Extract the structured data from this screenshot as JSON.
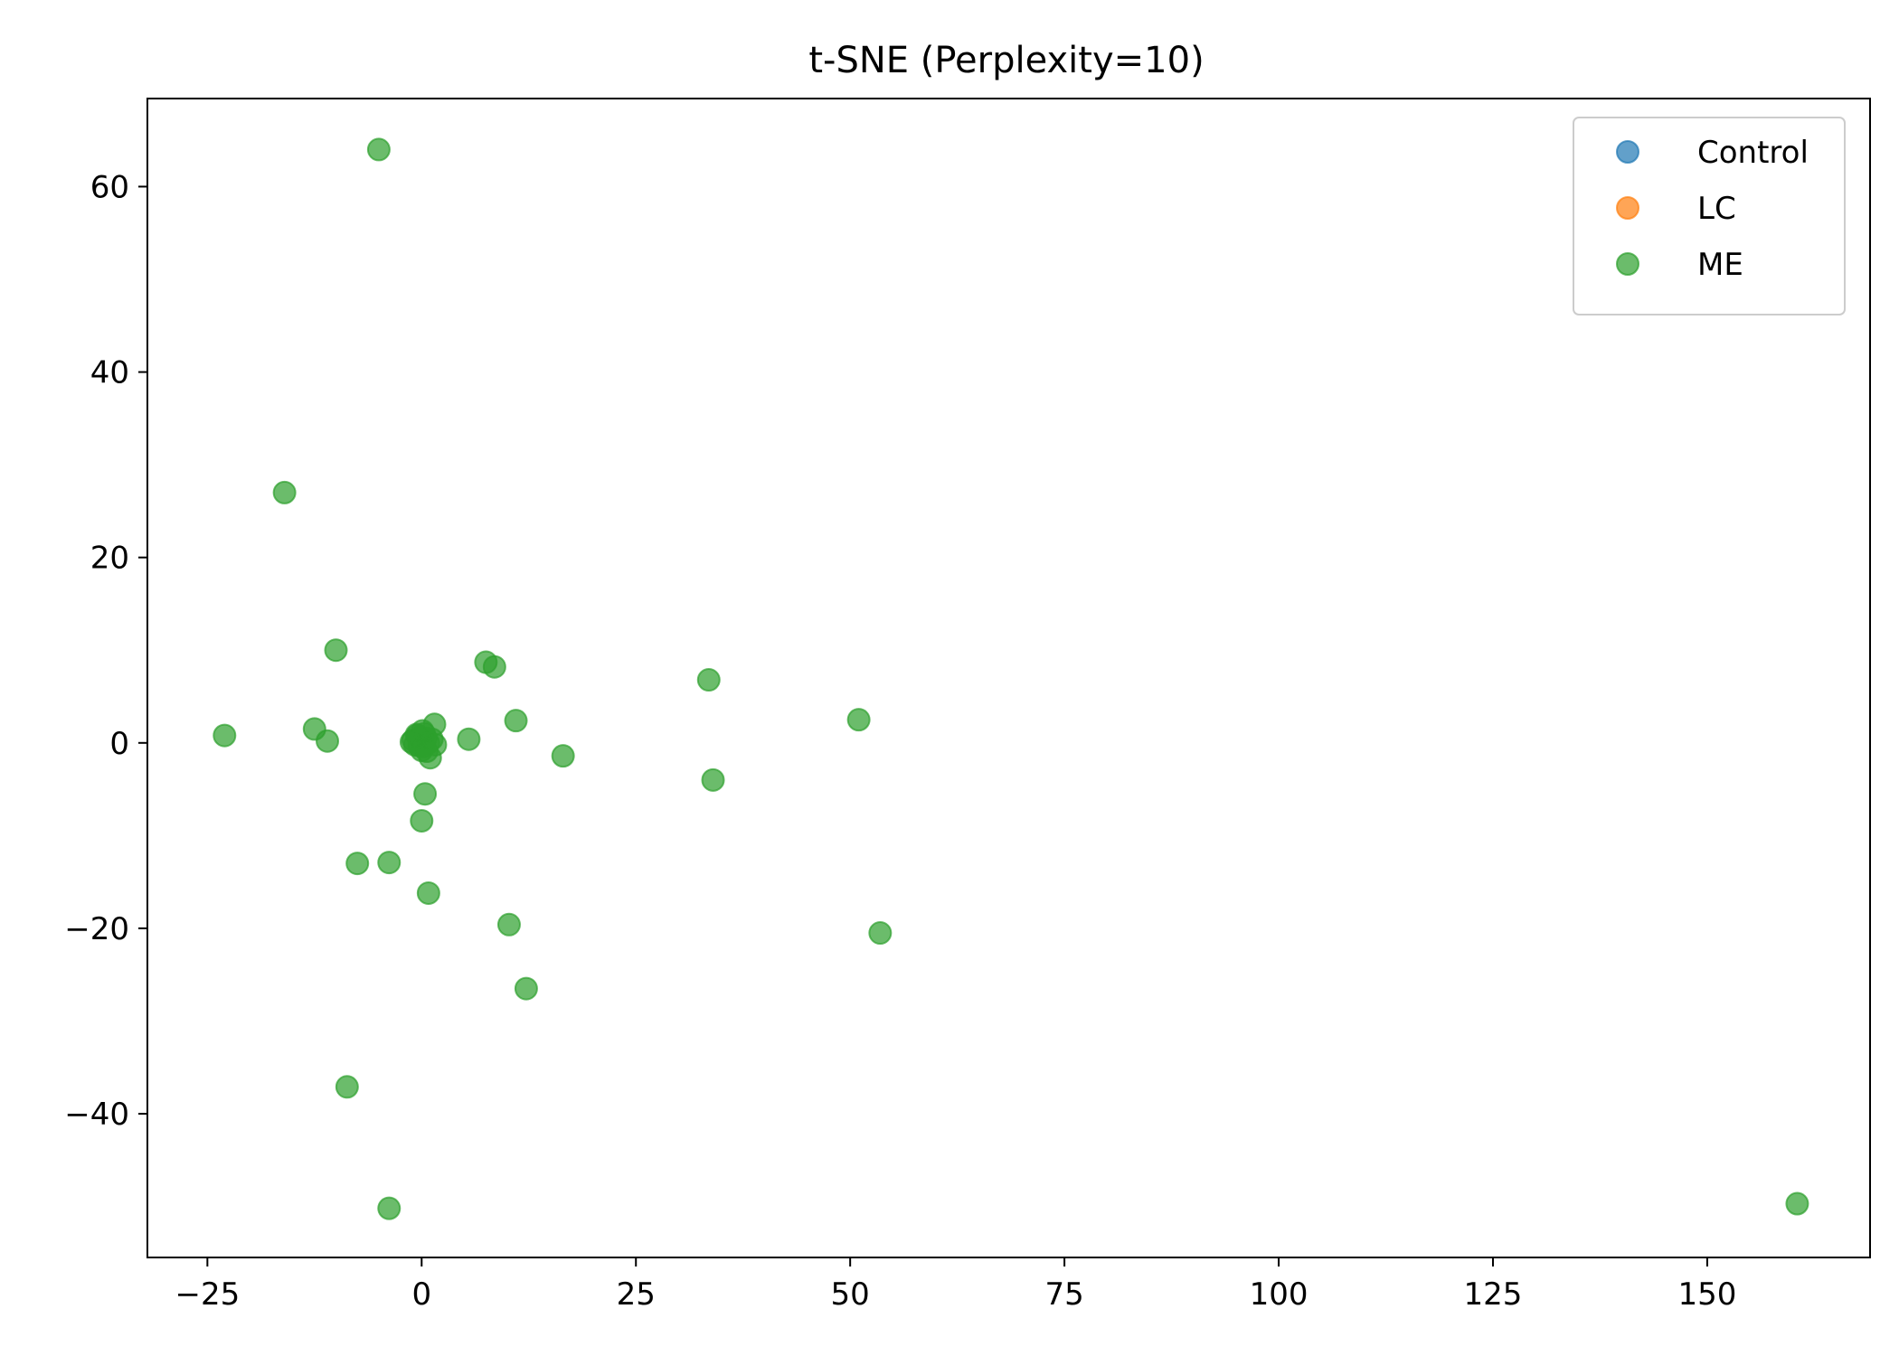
{
  "chart_data": {
    "type": "scatter",
    "title": "t-SNE (Perplexity=10)",
    "xlabel": "",
    "ylabel": "",
    "xlim": [
      -32,
      169
    ],
    "ylim": [
      -55.5,
      69.5
    ],
    "xticks": [
      -25,
      0,
      25,
      50,
      75,
      100,
      125,
      150
    ],
    "yticks": [
      -40,
      -20,
      0,
      20,
      40,
      60
    ],
    "grid": false,
    "legend_position": "top-right",
    "series": [
      {
        "name": "Control",
        "color": "#1f77b4",
        "points": []
      },
      {
        "name": "LC",
        "color": "#ff7f0e",
        "points": []
      },
      {
        "name": "ME",
        "color": "#2ca02c",
        "points": [
          [
            -5,
            64
          ],
          [
            -16,
            27
          ],
          [
            -10,
            10
          ],
          [
            -23,
            0.8
          ],
          [
            -12.5,
            1.5
          ],
          [
            -11,
            0.2
          ],
          [
            7.5,
            8.7
          ],
          [
            8.5,
            8.2
          ],
          [
            1.5,
            2
          ],
          [
            5.5,
            0.4
          ],
          [
            11,
            2.4
          ],
          [
            16.5,
            -1.4
          ],
          [
            33.5,
            6.8
          ],
          [
            34,
            -4
          ],
          [
            51,
            2.5
          ],
          [
            53.5,
            -20.5
          ],
          [
            0.4,
            -5.5
          ],
          [
            0,
            -8.4
          ],
          [
            -7.5,
            -13
          ],
          [
            -3.8,
            -12.9
          ],
          [
            0.8,
            -16.2
          ],
          [
            10.2,
            -19.6
          ],
          [
            12.2,
            -26.5
          ],
          [
            -8.7,
            -37.1
          ],
          [
            -3.8,
            -50.2
          ],
          [
            160.5,
            -49.7
          ],
          [
            -1,
            0.3
          ],
          [
            -0.5,
            0.8
          ],
          [
            0,
            0.2
          ],
          [
            0.5,
            0.5
          ],
          [
            -0.3,
            -0.3
          ],
          [
            0.3,
            1
          ],
          [
            -0.8,
            -0.2
          ],
          [
            0.8,
            0
          ],
          [
            0,
            -0.8
          ],
          [
            1,
            -1.6
          ],
          [
            -0.2,
            0.6
          ],
          [
            1.2,
            0.4
          ],
          [
            0.2,
            -0.4
          ],
          [
            -0.6,
            0.9
          ],
          [
            0.6,
            -0.9
          ],
          [
            -1.2,
            0.1
          ],
          [
            1.6,
            -0.2
          ],
          [
            0.1,
            1.3
          ]
        ]
      }
    ]
  }
}
